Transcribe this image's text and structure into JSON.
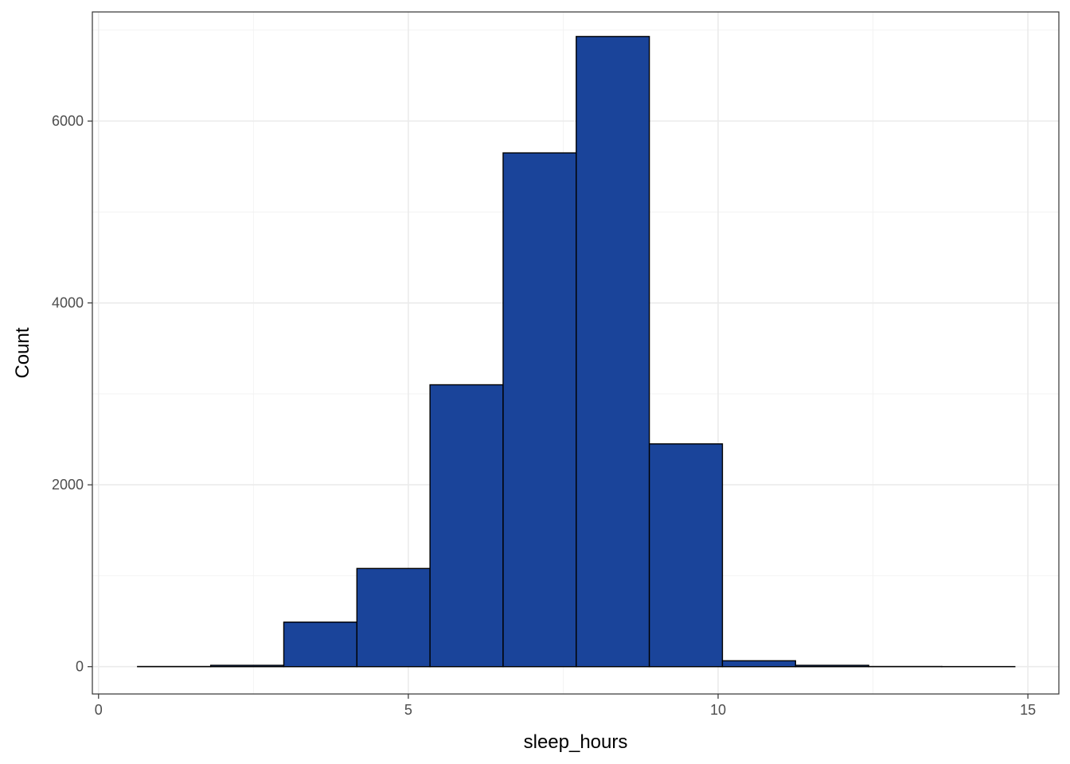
{
  "chart_data": {
    "type": "bar",
    "subtype": "histogram",
    "title": "",
    "xlabel": "sleep_hours",
    "ylabel": "Count",
    "xlim": [
      -0.1,
      15.5
    ],
    "ylim": [
      -300,
      7200
    ],
    "x_ticks": [
      0,
      5,
      10,
      15
    ],
    "y_ticks": [
      0,
      2000,
      4000,
      6000
    ],
    "grid": true,
    "bar_color": "#1a449a",
    "bar_border_color": "#000000",
    "bins": [
      {
        "x0": 0.63,
        "x1": 1.81,
        "count": 2
      },
      {
        "x0": 1.81,
        "x1": 2.99,
        "count": 15
      },
      {
        "x0": 2.99,
        "x1": 4.17,
        "count": 490
      },
      {
        "x0": 4.17,
        "x1": 5.35,
        "count": 1080
      },
      {
        "x0": 5.35,
        "x1": 6.53,
        "count": 3100
      },
      {
        "x0": 6.53,
        "x1": 7.71,
        "count": 5650
      },
      {
        "x0": 7.71,
        "x1": 8.89,
        "count": 6930
      },
      {
        "x0": 8.89,
        "x1": 10.07,
        "count": 2450
      },
      {
        "x0": 10.07,
        "x1": 11.25,
        "count": 65
      },
      {
        "x0": 11.25,
        "x1": 12.43,
        "count": 15
      },
      {
        "x0": 12.43,
        "x1": 13.61,
        "count": 2
      },
      {
        "x0": 13.61,
        "x1": 14.79,
        "count": 1
      }
    ]
  }
}
